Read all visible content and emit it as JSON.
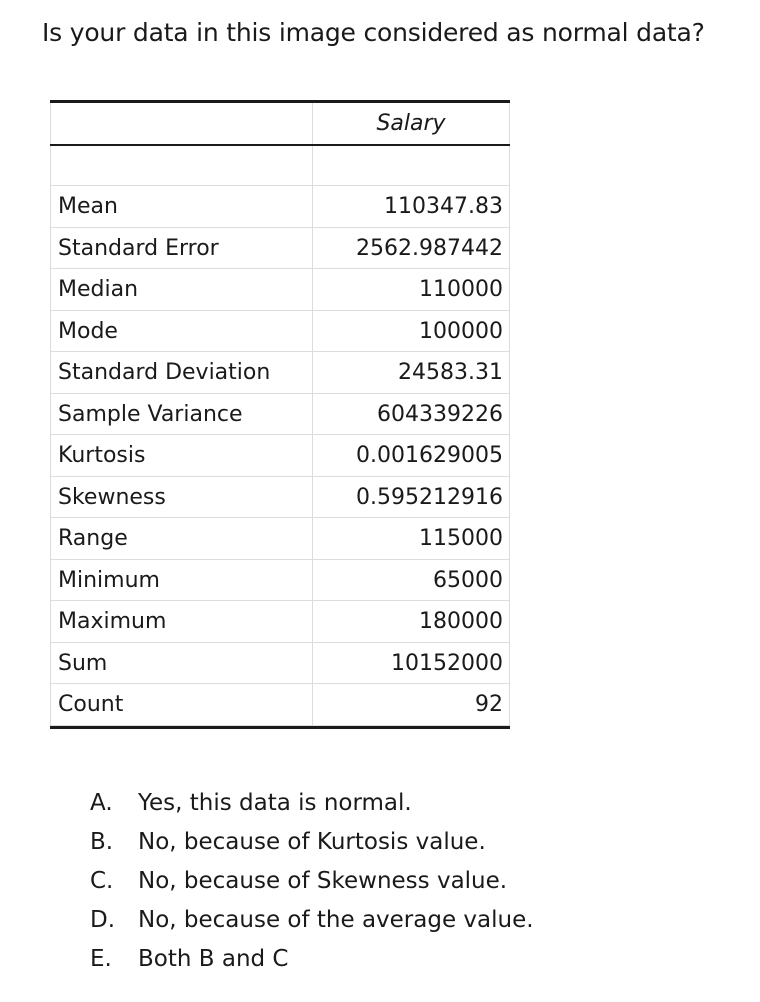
{
  "question": "Is your data in this image considered as normal data?",
  "table": {
    "column_header": "Salary",
    "rows": [
      {
        "label": "Mean",
        "value": "110347.83"
      },
      {
        "label": "Standard Error",
        "value": "2562.987442"
      },
      {
        "label": "Median",
        "value": "110000"
      },
      {
        "label": "Mode",
        "value": "100000"
      },
      {
        "label": "Standard Deviation",
        "value": "24583.31"
      },
      {
        "label": "Sample Variance",
        "value": "604339226"
      },
      {
        "label": "Kurtosis",
        "value": "0.001629005"
      },
      {
        "label": "Skewness",
        "value": "0.595212916"
      },
      {
        "label": "Range",
        "value": "115000"
      },
      {
        "label": "Minimum",
        "value": "65000"
      },
      {
        "label": "Maximum",
        "value": "180000"
      },
      {
        "label": "Sum",
        "value": "10152000"
      },
      {
        "label": "Count",
        "value": "92"
      }
    ]
  },
  "options": [
    {
      "letter": "A.",
      "text": "Yes, this data is normal."
    },
    {
      "letter": "B.",
      "text": "No, because of Kurtosis value."
    },
    {
      "letter": "C.",
      "text": "No, because of Skewness value."
    },
    {
      "letter": "D.",
      "text": "No, because of the average value."
    },
    {
      "letter": "E.",
      "text": "Both B and C"
    }
  ]
}
